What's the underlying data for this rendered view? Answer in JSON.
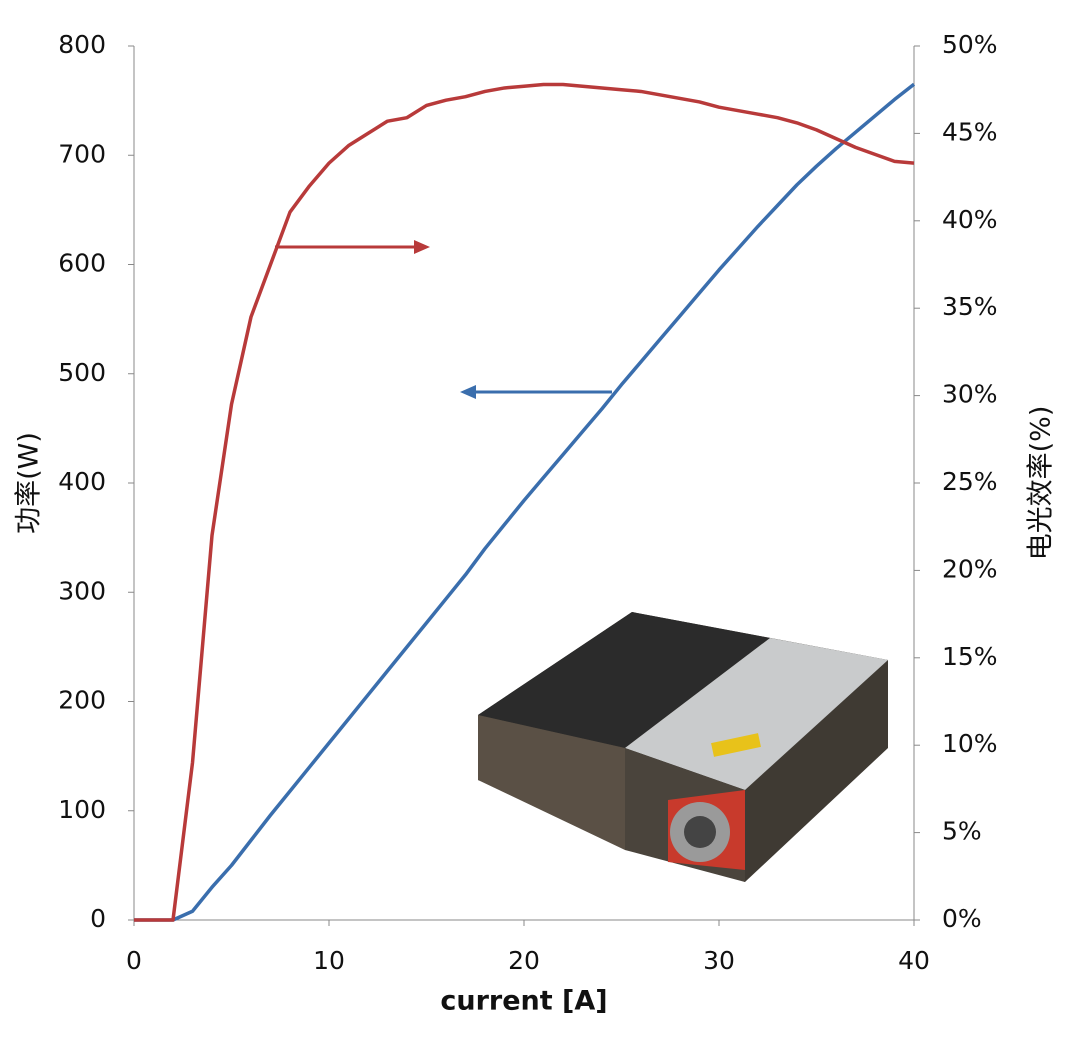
{
  "chart_data": {
    "type": "line",
    "xlabel": "current [A]",
    "ylabel": "功率(W)",
    "y2label": "电光效率(%)",
    "x": [
      0,
      1,
      2,
      3,
      4,
      5,
      6,
      7,
      8,
      9,
      10,
      11,
      12,
      13,
      14,
      15,
      16,
      17,
      18,
      19,
      20,
      21,
      22,
      23,
      24,
      25,
      26,
      27,
      28,
      29,
      30,
      31,
      32,
      33,
      34,
      35,
      36,
      37,
      38,
      39,
      40
    ],
    "series": [
      {
        "color": "#3a6ead",
        "values": [
          0,
          0,
          0,
          8,
          30,
          50,
          73,
          96,
          118,
          140,
          162,
          184,
          206,
          228,
          250,
          272,
          294,
          316,
          340,
          362,
          384,
          405,
          426,
          447,
          468,
          490,
          511,
          532,
          553,
          574,
          595,
          615,
          635,
          654,
          673,
          690,
          706,
          721,
          736,
          751,
          765
        ]
      },
      {
        "color": "#b83a3a",
        "axis": "y2",
        "values": [
          0,
          0,
          0,
          9,
          22,
          29.5,
          34.5,
          37.5,
          40.5,
          42,
          43.3,
          44.3,
          45,
          45.7,
          45.9,
          46.6,
          46.9,
          47.1,
          47.4,
          47.6,
          47.7,
          47.8,
          47.8,
          47.7,
          47.6,
          47.5,
          47.4,
          47.2,
          47,
          46.8,
          46.5,
          46.3,
          46.1,
          45.9,
          45.6,
          45.2,
          44.7,
          44.2,
          43.8,
          43.4,
          43.3
        ]
      }
    ],
    "xlim": [
      0,
      40
    ],
    "xticks": [
      0,
      10,
      20,
      30,
      40
    ],
    "ylim": [
      0,
      800
    ],
    "yticks": [
      0,
      100,
      200,
      300,
      400,
      500,
      600,
      700,
      800
    ],
    "y2lim": [
      0,
      50
    ],
    "y2ticks": [
      {
        "value": 0,
        "label": "0%"
      },
      {
        "value": 5,
        "label": "5%"
      },
      {
        "value": 10,
        "label": "10%"
      },
      {
        "value": 15,
        "label": "15%"
      },
      {
        "value": 20,
        "label": "20%"
      },
      {
        "value": 25,
        "label": "25%"
      },
      {
        "value": 30,
        "label": "30%"
      },
      {
        "value": 35,
        "label": "35%"
      },
      {
        "value": 40,
        "label": "40%"
      },
      {
        "value": 45,
        "label": "45%"
      },
      {
        "value": 50,
        "label": "50%"
      }
    ],
    "grid": false
  }
}
